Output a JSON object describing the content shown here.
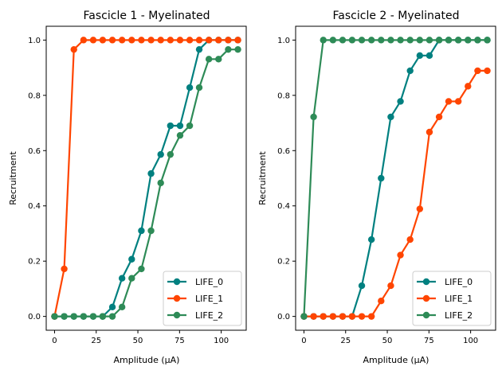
{
  "chart_data": [
    {
      "type": "line",
      "title": "Fascicle 1 - Myelinated",
      "xlabel": "Amplitude (µA)",
      "ylabel": "Recruitment",
      "xlim": [
        -5,
        115
      ],
      "ylim": [
        -0.05,
        1.05
      ],
      "xticks": [
        0,
        25,
        50,
        75,
        100
      ],
      "yticks": [
        0.0,
        0.2,
        0.4,
        0.6,
        0.8,
        1.0
      ],
      "grid": false,
      "legend_position": "bottom-right",
      "x": [
        0,
        5.8,
        11.6,
        17.4,
        23.2,
        28.9,
        34.7,
        40.5,
        46.3,
        52.1,
        57.9,
        63.7,
        69.5,
        75.3,
        81.1,
        86.8,
        92.6,
        98.4,
        104.2,
        110
      ],
      "series": [
        {
          "name": "LIFE_0",
          "color": "#008080",
          "values": [
            0,
            0,
            0,
            0,
            0,
            0,
            0.034,
            0.138,
            0.207,
            0.31,
            0.517,
            0.586,
            0.69,
            0.69,
            0.828,
            0.966,
            1,
            1,
            1,
            1
          ]
        },
        {
          "name": "LIFE_1",
          "color": "#FF4500",
          "values": [
            0,
            0.172,
            0.966,
            1,
            1,
            1,
            1,
            1,
            1,
            1,
            1,
            1,
            1,
            1,
            1,
            1,
            1,
            1,
            1,
            1
          ]
        },
        {
          "name": "LIFE_2",
          "color": "#2E8B57",
          "values": [
            0,
            0,
            0,
            0,
            0,
            0,
            0,
            0.034,
            0.138,
            0.172,
            0.31,
            0.483,
            0.586,
            0.655,
            0.69,
            0.828,
            0.931,
            0.931,
            0.966,
            0.966
          ]
        }
      ]
    },
    {
      "type": "line",
      "title": "Fascicle 2 - Myelinated",
      "xlabel": "Amplitude (µA)",
      "ylabel": "Recruitment",
      "xlim": [
        -5,
        115
      ],
      "ylim": [
        -0.05,
        1.05
      ],
      "xticks": [
        0,
        25,
        50,
        75,
        100
      ],
      "yticks": [
        0.0,
        0.2,
        0.4,
        0.6,
        0.8,
        1.0
      ],
      "grid": false,
      "legend_position": "bottom-right",
      "x": [
        0,
        5.8,
        11.6,
        17.4,
        23.2,
        28.9,
        34.7,
        40.5,
        46.3,
        52.1,
        57.9,
        63.7,
        69.5,
        75.3,
        81.1,
        86.8,
        92.6,
        98.4,
        104.2,
        110
      ],
      "series": [
        {
          "name": "LIFE_0",
          "color": "#008080",
          "values": [
            0,
            0,
            0,
            0,
            0,
            0,
            0.111,
            0.278,
            0.5,
            0.722,
            0.778,
            0.889,
            0.944,
            0.944,
            1,
            1,
            1,
            1,
            1,
            1
          ]
        },
        {
          "name": "LIFE_1",
          "color": "#FF4500",
          "values": [
            0,
            0,
            0,
            0,
            0,
            0,
            0,
            0,
            0.056,
            0.111,
            0.222,
            0.278,
            0.389,
            0.667,
            0.722,
            0.778,
            0.778,
            0.833,
            0.889,
            0.889
          ]
        },
        {
          "name": "LIFE_2",
          "color": "#2E8B57",
          "values": [
            0,
            0.722,
            1,
            1,
            1,
            1,
            1,
            1,
            1,
            1,
            1,
            1,
            1,
            1,
            1,
            1,
            1,
            1,
            1,
            1
          ]
        }
      ]
    }
  ]
}
